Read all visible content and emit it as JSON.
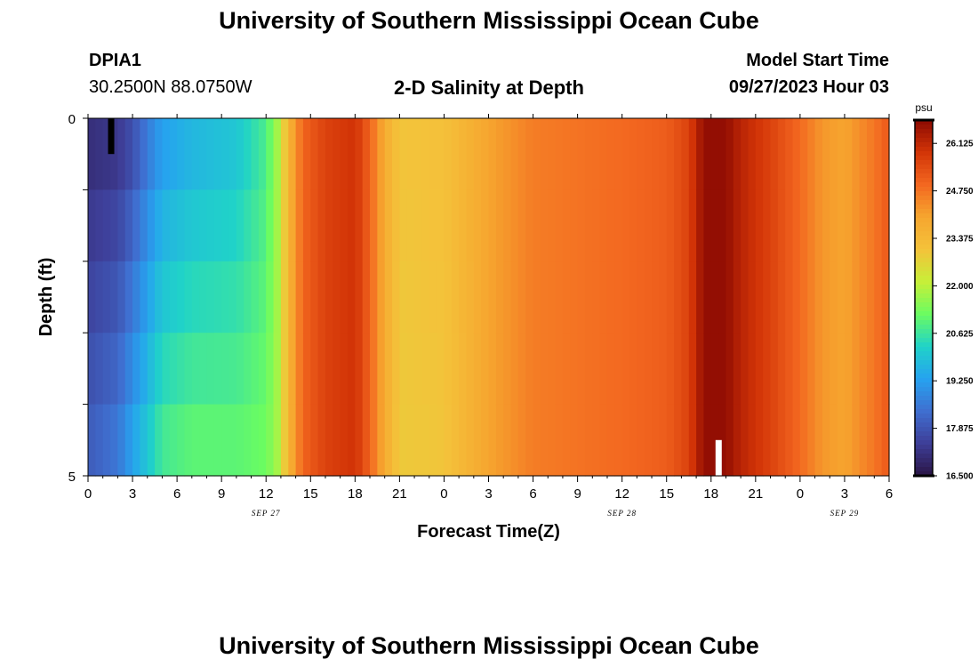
{
  "header": {
    "title": "University of Southern Mississippi Ocean Cube",
    "station_id": "DPIA1",
    "coordinates": "30.2500N  88.0750W",
    "plot_title": "2-D Salinity at Depth",
    "model_start_label": "Model Start Time",
    "model_start_value": "09/27/2023 Hour 03"
  },
  "footer": {
    "title": "University of Southern Mississippi Ocean Cube"
  },
  "colorbar": {
    "unit": "psu",
    "tick_labels": [
      "26.125",
      "24.750",
      "23.375",
      "22.000",
      "20.625",
      "19.250",
      "17.875",
      "16.500"
    ],
    "min": 16.5,
    "max": 26.8,
    "colors": [
      "#2a1545",
      "#3e3e98",
      "#3f6fd0",
      "#26a2f0",
      "#20d3c8",
      "#6bfc61",
      "#c8ef38",
      "#f4c23a",
      "#f6a62f",
      "#f36720",
      "#d23407",
      "#8c0a02"
    ]
  },
  "chart_data": {
    "type": "heatmap",
    "title": "2-D Salinity at Depth",
    "xlabel": "Forecast Time(Z)",
    "ylabel": "Depth (ft)",
    "x_tick_labels": [
      "0",
      "3",
      "6",
      "9",
      "12",
      "15",
      "18",
      "21",
      "0",
      "3",
      "6",
      "9",
      "12",
      "15",
      "18",
      "21",
      "0",
      "3",
      "6"
    ],
    "date_labels": [
      {
        "label": "SEP 27",
        "hour": 12
      },
      {
        "label": "SEP 28",
        "hour": 36
      },
      {
        "label": "SEP 29",
        "hour": 51
      }
    ],
    "y_tick_labels": [
      "0",
      "5"
    ],
    "x_range_hours": [
      0,
      54
    ],
    "ylim": [
      0,
      5
    ],
    "depth_levels": 5,
    "time_step_hours": 0.5,
    "colorbar_unit": "psu",
    "value_range": [
      16.5,
      26.8
    ],
    "keyframes": [
      {
        "hour": 0,
        "surface": 17.1,
        "bottom": 18.0
      },
      {
        "hour": 2,
        "surface": 17.3,
        "bottom": 18.5
      },
      {
        "hour": 3,
        "surface": 17.8,
        "bottom": 19.3
      },
      {
        "hour": 4,
        "surface": 18.6,
        "bottom": 20.0
      },
      {
        "hour": 5,
        "surface": 19.3,
        "bottom": 20.7
      },
      {
        "hour": 7,
        "surface": 19.7,
        "bottom": 21.0
      },
      {
        "hour": 10,
        "surface": 20.0,
        "bottom": 21.0
      },
      {
        "hour": 12,
        "surface": 20.8,
        "bottom": 21.2
      },
      {
        "hour": 12.8,
        "surface": 21.8,
        "bottom": 21.8
      },
      {
        "hour": 13.5,
        "surface": 23.5,
        "bottom": 23.5
      },
      {
        "hour": 14.5,
        "surface": 25.0,
        "bottom": 25.0
      },
      {
        "hour": 16,
        "surface": 25.6,
        "bottom": 25.6
      },
      {
        "hour": 18,
        "surface": 25.9,
        "bottom": 25.9
      },
      {
        "hour": 19,
        "surface": 25.0,
        "bottom": 25.0
      },
      {
        "hour": 20,
        "surface": 23.8,
        "bottom": 23.8
      },
      {
        "hour": 21,
        "surface": 23.0,
        "bottom": 22.9
      },
      {
        "hour": 24,
        "surface": 23.1,
        "bottom": 23.0
      },
      {
        "hour": 27,
        "surface": 24.0,
        "bottom": 24.0
      },
      {
        "hour": 30,
        "surface": 24.6,
        "bottom": 24.6
      },
      {
        "hour": 36,
        "surface": 24.9,
        "bottom": 24.9
      },
      {
        "hour": 39,
        "surface": 25.1,
        "bottom": 25.1
      },
      {
        "hour": 40.5,
        "surface": 25.6,
        "bottom": 25.6
      },
      {
        "hour": 41.5,
        "surface": 26.7,
        "bottom": 26.7
      },
      {
        "hour": 43,
        "surface": 26.7,
        "bottom": 26.7
      },
      {
        "hour": 44,
        "surface": 26.2,
        "bottom": 26.2
      },
      {
        "hour": 46,
        "surface": 25.6,
        "bottom": 25.6
      },
      {
        "hour": 48,
        "surface": 24.9,
        "bottom": 24.9
      },
      {
        "hour": 49.5,
        "surface": 24.2,
        "bottom": 24.2
      },
      {
        "hour": 51,
        "surface": 24.0,
        "bottom": 24.0
      },
      {
        "hour": 53,
        "surface": 24.7,
        "bottom": 24.7
      },
      {
        "hour": 54,
        "surface": 25.2,
        "bottom": 25.2
      }
    ]
  }
}
